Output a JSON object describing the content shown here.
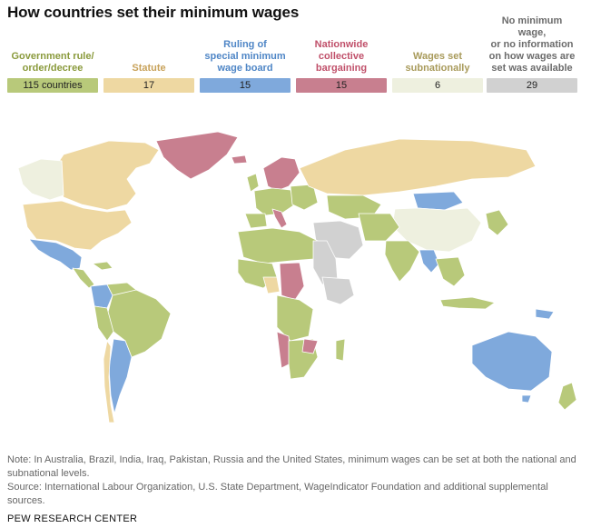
{
  "title": "How countries set their minimum wages",
  "legend": [
    {
      "label": "Government rule/\norder/decree",
      "value": "115 countries",
      "color": "#b8c97a",
      "text_color": "#8a9a3c"
    },
    {
      "label": "Statute",
      "value": "17",
      "color": "#eed8a2",
      "text_color": "#c8a25a"
    },
    {
      "label": "Ruling of\nspecial minimum\nwage board",
      "value": "15",
      "color": "#7fa9dc",
      "text_color": "#4f86c6"
    },
    {
      "label": "Nationwide\ncollective\nbargaining",
      "value": "15",
      "color": "#c87f8f",
      "text_color": "#c0506a"
    },
    {
      "label": "Wages set\nsubnationally",
      "value": "6",
      "color": "#eef0df",
      "text_color": "#a89a5a"
    },
    {
      "label": "No minimum wage,\nor no information\non how wages are\nset was available",
      "value": "29",
      "color": "#d1d1d1",
      "text_color": "#6b6b6b"
    }
  ],
  "map_colors": {
    "government": "#b8c97a",
    "statute": "#eed8a2",
    "board": "#7fa9dc",
    "bargaining": "#c87f8f",
    "subnational": "#eef0df",
    "none": "#d1d1d1"
  },
  "note": "Note: In Australia, Brazil, India, Iraq, Pakistan, Russia and the United States, minimum wages can be set at both the national and subnational levels.",
  "source": "Source: International Labour Organization, U.S. State Department, WageIndicator Foundation and additional supplemental sources.",
  "footer": "PEW RESEARCH CENTER"
}
